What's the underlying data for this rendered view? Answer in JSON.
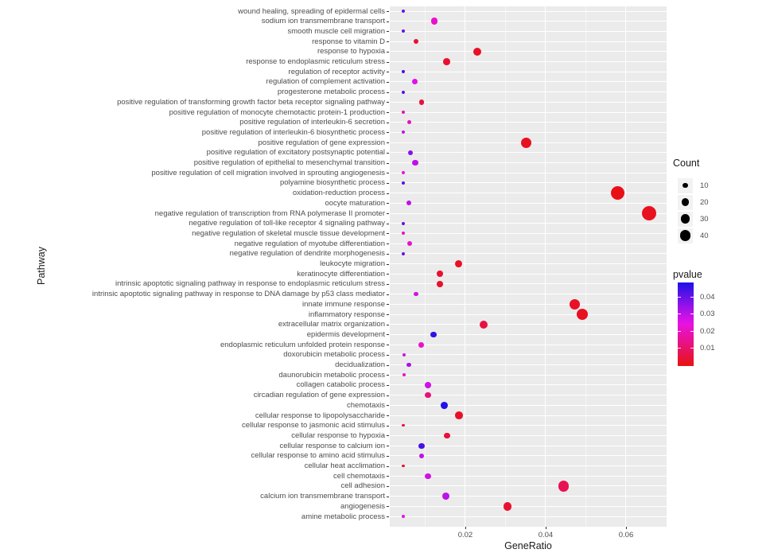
{
  "chart_data": {
    "type": "scatter",
    "subtype": "enrichment-dot-plot",
    "xlabel": "GeneRatio",
    "ylabel": "Pathway",
    "x_ticks": [
      0.02,
      0.04,
      0.06
    ],
    "x_minor_ticks": [
      0.01,
      0.03,
      0.05
    ],
    "xlim": [
      0.0012,
      0.0701
    ],
    "grid": true,
    "colors": {
      "panel_bg": "#ebebeb",
      "grid": "#ffffff",
      "axis_text": "#4d4d4d",
      "axis_title": "#1a1a1a",
      "pvalue_low": "#fa0a0a",
      "pvalue_high": "#2a2ae6",
      "count_dot": "#000000"
    },
    "legend": {
      "count": {
        "title": "Count",
        "sizes": [
          10,
          20,
          30,
          40
        ]
      },
      "pvalue": {
        "title": "pvalue",
        "tick_labels": [
          "0.04",
          "0.03",
          "0.02",
          "0.01"
        ],
        "scale_min": 0.0003,
        "scale_max": 0.0483
      }
    },
    "points": [
      {
        "pathway": "wound healing, spreading of epidermal cells",
        "gene_ratio": 0.0046,
        "count": 4,
        "pvalue": 0.04
      },
      {
        "pathway": "sodium ion transmembrane transport",
        "gene_ratio": 0.0123,
        "count": 17,
        "pvalue": 0.022
      },
      {
        "pathway": "smooth muscle cell migration",
        "gene_ratio": 0.0046,
        "count": 4,
        "pvalue": 0.04
      },
      {
        "pathway": "response to vitamin D",
        "gene_ratio": 0.0077,
        "count": 10,
        "pvalue": 0.004
      },
      {
        "pathway": "response to hypoxia",
        "gene_ratio": 0.023,
        "count": 23,
        "pvalue": 0.003
      },
      {
        "pathway": "response to endoplasmic reticulum stress",
        "gene_ratio": 0.0154,
        "count": 17,
        "pvalue": 0.004
      },
      {
        "pathway": "regulation of receptor activity",
        "gene_ratio": 0.0046,
        "count": 4,
        "pvalue": 0.044
      },
      {
        "pathway": "regulation of complement activation",
        "gene_ratio": 0.0075,
        "count": 11,
        "pvalue": 0.026
      },
      {
        "pathway": "progesterone metabolic process",
        "gene_ratio": 0.0046,
        "count": 4,
        "pvalue": 0.042
      },
      {
        "pathway": "positive regulation of transforming growth factor beta receptor signaling pathway",
        "gene_ratio": 0.0091,
        "count": 10,
        "pvalue": 0.005
      },
      {
        "pathway": "positive regulation of monocyte chemotactic protein-1 production",
        "gene_ratio": 0.0046,
        "count": 4,
        "pvalue": 0.018
      },
      {
        "pathway": "positive regulation of interleukin-6 secretion",
        "gene_ratio": 0.0061,
        "count": 6,
        "pvalue": 0.02
      },
      {
        "pathway": "positive regulation of interleukin-6 biosynthetic process",
        "gene_ratio": 0.0046,
        "count": 4,
        "pvalue": 0.03
      },
      {
        "pathway": "positive regulation of gene expression",
        "gene_ratio": 0.0352,
        "count": 40,
        "pvalue": 0.002
      },
      {
        "pathway": "positive regulation of excitatory postsynaptic potential",
        "gene_ratio": 0.0063,
        "count": 8,
        "pvalue": 0.036
      },
      {
        "pathway": "positive regulation of epithelial to mesenchymal transition",
        "gene_ratio": 0.0075,
        "count": 14,
        "pvalue": 0.03
      },
      {
        "pathway": "positive regulation of cell migration involved in sprouting angiogenesis",
        "gene_ratio": 0.0046,
        "count": 4,
        "pvalue": 0.024
      },
      {
        "pathway": "polyamine biosynthetic process",
        "gene_ratio": 0.0046,
        "count": 4,
        "pvalue": 0.042
      },
      {
        "pathway": "oxidation-reduction process",
        "gene_ratio": 0.058,
        "count": 68,
        "pvalue": 0.001
      },
      {
        "pathway": "oocyte maturation",
        "gene_ratio": 0.0059,
        "count": 8,
        "pvalue": 0.03
      },
      {
        "pathway": "negative regulation of transcription from RNA polymerase II promoter",
        "gene_ratio": 0.0657,
        "count": 74,
        "pvalue": 0.002
      },
      {
        "pathway": "negative regulation of toll-like receptor 4 signaling pathway",
        "gene_ratio": 0.0046,
        "count": 4,
        "pvalue": 0.04
      },
      {
        "pathway": "negative regulation of skeletal muscle tissue development",
        "gene_ratio": 0.0046,
        "count": 4,
        "pvalue": 0.02
      },
      {
        "pathway": "negative regulation of myotube differentiation",
        "gene_ratio": 0.0061,
        "count": 8,
        "pvalue": 0.022
      },
      {
        "pathway": "negative regulation of dendrite morphogenesis",
        "gene_ratio": 0.0046,
        "count": 4,
        "pvalue": 0.04
      },
      {
        "pathway": "leukocyte migration",
        "gene_ratio": 0.0184,
        "count": 18,
        "pvalue": 0.003
      },
      {
        "pathway": "keratinocyte differentiation",
        "gene_ratio": 0.0137,
        "count": 13,
        "pvalue": 0.004
      },
      {
        "pathway": "intrinsic apoptotic signaling pathway in response to endoplasmic reticulum stress",
        "gene_ratio": 0.0137,
        "count": 13,
        "pvalue": 0.004
      },
      {
        "pathway": "intrinsic apoptotic signaling pathway in response to DNA damage by p53 class mediator",
        "gene_ratio": 0.0077,
        "count": 8,
        "pvalue": 0.028
      },
      {
        "pathway": "innate immune response",
        "gene_ratio": 0.0473,
        "count": 40,
        "pvalue": 0.003
      },
      {
        "pathway": "inflammatory response",
        "gene_ratio": 0.0491,
        "count": 48,
        "pvalue": 0.002
      },
      {
        "pathway": "extracellular matrix organization",
        "gene_ratio": 0.0246,
        "count": 23,
        "pvalue": 0.006
      },
      {
        "pathway": "epidermis development",
        "gene_ratio": 0.0121,
        "count": 14,
        "pvalue": 0.046
      },
      {
        "pathway": "endoplasmic reticulum unfolded protein response",
        "gene_ratio": 0.0091,
        "count": 11,
        "pvalue": 0.022
      },
      {
        "pathway": "doxorubicin metabolic process",
        "gene_ratio": 0.0048,
        "count": 4,
        "pvalue": 0.028
      },
      {
        "pathway": "decidualization",
        "gene_ratio": 0.0059,
        "count": 8,
        "pvalue": 0.032
      },
      {
        "pathway": "daunorubicin metabolic process",
        "gene_ratio": 0.0048,
        "count": 4,
        "pvalue": 0.022
      },
      {
        "pathway": "collagen catabolic process",
        "gene_ratio": 0.0107,
        "count": 13,
        "pvalue": 0.028
      },
      {
        "pathway": "circadian regulation of gene expression",
        "gene_ratio": 0.0107,
        "count": 13,
        "pvalue": 0.012
      },
      {
        "pathway": "chemotaxis",
        "gene_ratio": 0.0147,
        "count": 18,
        "pvalue": 0.048
      },
      {
        "pathway": "cellular response to lipopolysaccharide",
        "gene_ratio": 0.0184,
        "count": 22,
        "pvalue": 0.003
      },
      {
        "pathway": "cellular response to jasmonic acid stimulus",
        "gene_ratio": 0.0046,
        "count": 3,
        "pvalue": 0.006
      },
      {
        "pathway": "cellular response to hypoxia",
        "gene_ratio": 0.0154,
        "count": 14,
        "pvalue": 0.005
      },
      {
        "pathway": "cellular response to calcium ion",
        "gene_ratio": 0.0091,
        "count": 12,
        "pvalue": 0.044
      },
      {
        "pathway": "cellular response to amino acid stimulus",
        "gene_ratio": 0.0091,
        "count": 10,
        "pvalue": 0.03
      },
      {
        "pathway": "cellular heat acclimation",
        "gene_ratio": 0.0046,
        "count": 3,
        "pvalue": 0.005
      },
      {
        "pathway": "cell chemotaxis",
        "gene_ratio": 0.0107,
        "count": 12,
        "pvalue": 0.028
      },
      {
        "pathway": "cell adhesion",
        "gene_ratio": 0.0444,
        "count": 40,
        "pvalue": 0.008
      },
      {
        "pathway": "calcium ion transmembrane transport",
        "gene_ratio": 0.0152,
        "count": 18,
        "pvalue": 0.03
      },
      {
        "pathway": "angiogenesis",
        "gene_ratio": 0.0305,
        "count": 27,
        "pvalue": 0.004
      },
      {
        "pathway": "amine metabolic process",
        "gene_ratio": 0.0046,
        "count": 4,
        "pvalue": 0.026
      }
    ]
  }
}
